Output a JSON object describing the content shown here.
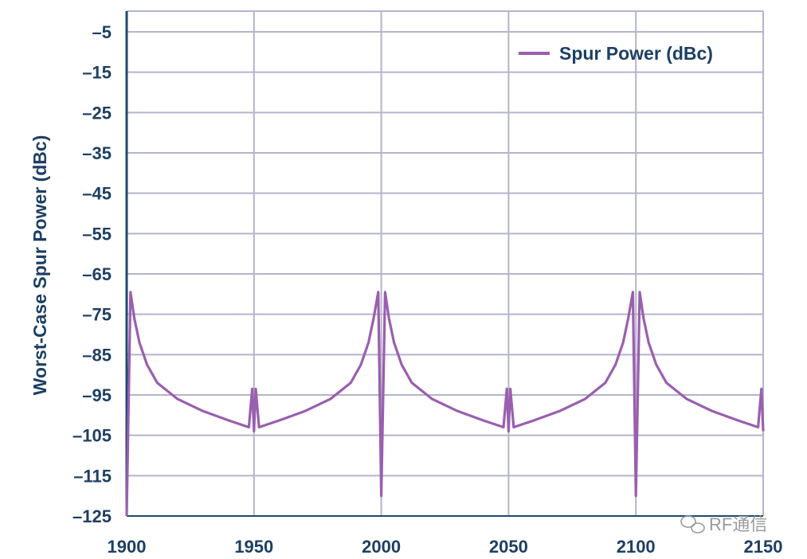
{
  "chart_data": {
    "type": "line",
    "title": "",
    "xlabel": "",
    "ylabel": "Worst-Case Spur Power (dBc)",
    "xlim": [
      1900,
      2150
    ],
    "ylim": [
      -125,
      -5
    ],
    "xticks": [
      1900,
      1950,
      2000,
      2050,
      2100,
      2150
    ],
    "yticks": [
      -5,
      -15,
      -25,
      -35,
      -45,
      -55,
      -65,
      -75,
      -85,
      -95,
      -105,
      -115,
      -125
    ],
    "ytick_labels": [
      "–5",
      "–15",
      "–25",
      "–35",
      "–45",
      "–55",
      "–65",
      "–75",
      "–85",
      "–95",
      "–105",
      "–115",
      "–125"
    ],
    "grid": true,
    "legend_position": "top-right",
    "series": [
      {
        "name": "Spur Power (dBc)",
        "color": "#9a5fae",
        "period": 100,
        "points": [
          [
            1900,
            -125
          ],
          [
            1901.5,
            -69.5
          ],
          [
            1903,
            -76
          ],
          [
            1905,
            -82
          ],
          [
            1908,
            -87.5
          ],
          [
            1912,
            -92
          ],
          [
            1920,
            -96
          ],
          [
            1930,
            -99
          ],
          [
            1940,
            -101.3
          ],
          [
            1948,
            -103
          ],
          [
            1949.3,
            -93.5
          ],
          [
            1950,
            -104
          ],
          [
            1950.7,
            -93.5
          ],
          [
            1952,
            -103
          ],
          [
            1960,
            -101.3
          ],
          [
            1970,
            -99
          ],
          [
            1980,
            -96
          ],
          [
            1988,
            -92
          ],
          [
            1992,
            -87.5
          ],
          [
            1995,
            -82
          ],
          [
            1997,
            -76
          ],
          [
            1998.8,
            -69.5
          ],
          [
            2000,
            -120
          ]
        ]
      }
    ]
  },
  "watermark": "RF通信"
}
